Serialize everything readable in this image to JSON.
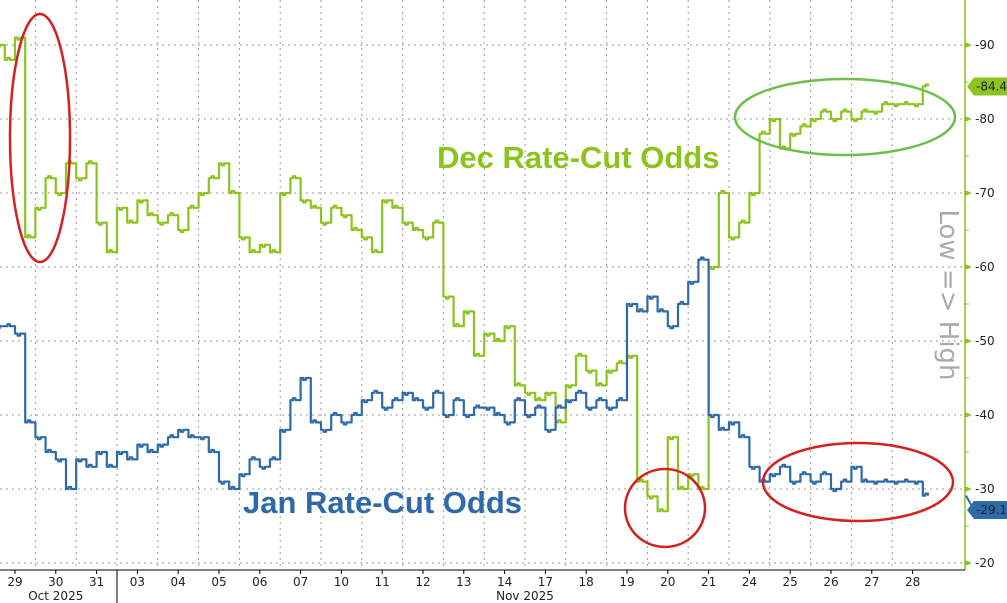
{
  "chart_data": {
    "type": "line",
    "categories": [
      "29",
      "30",
      "31",
      "03",
      "04",
      "05",
      "06",
      "07",
      "10",
      "11",
      "12",
      "13",
      "14",
      "17",
      "18",
      "19",
      "20",
      "21",
      "24",
      "25",
      "26",
      "27",
      "28"
    ],
    "month_labels": [
      "Oct 2025",
      "Nov 2025"
    ],
    "y_axis_title": "Low => High",
    "ylim": [
      20,
      92
    ],
    "yticks": [
      20,
      30,
      40,
      50,
      60,
      70,
      80,
      90
    ],
    "y_axis_side": "right",
    "grid": true,
    "samples_per_day_note_free": true,
    "series": [
      {
        "name": "Dec Rate-Cut Odds",
        "color": "#8cc41e",
        "last_value": "84.4",
        "values": [
          [
            90,
            88,
            91,
            64
          ],
          [
            68,
            72,
            70,
            74
          ],
          [
            72,
            74,
            66,
            62
          ],
          [
            68,
            66,
            69,
            67
          ],
          [
            66,
            67,
            65,
            68
          ],
          [
            70,
            72,
            74,
            70
          ],
          [
            64,
            62,
            63,
            62
          ],
          [
            70,
            72,
            69,
            68
          ],
          [
            66,
            68,
            67,
            65
          ],
          [
            64,
            62,
            69,
            68
          ],
          [
            66,
            65,
            64,
            66
          ],
          [
            56,
            52,
            54,
            48
          ],
          [
            51,
            50,
            52,
            44
          ],
          [
            43,
            42,
            43,
            39
          ],
          [
            44,
            48,
            46,
            44
          ],
          [
            46,
            47,
            48,
            31
          ],
          [
            29,
            27,
            37,
            30
          ],
          [
            32,
            30,
            60,
            70
          ],
          [
            64,
            66,
            70,
            78
          ],
          [
            80,
            76,
            78,
            79
          ],
          [
            80,
            81,
            80,
            81
          ],
          [
            80,
            81,
            81,
            82
          ],
          [
            82,
            82,
            82,
            84.4
          ]
        ]
      },
      {
        "name": "Jan Rate-Cut Odds",
        "color": "#2e6aa8",
        "last_value": "29.1",
        "values": [
          [
            52,
            52,
            51,
            39
          ],
          [
            37,
            35,
            34,
            30
          ],
          [
            34,
            33,
            35,
            33
          ],
          [
            35,
            34,
            36,
            35
          ],
          [
            36,
            37,
            38,
            37
          ],
          [
            37,
            35,
            31,
            30
          ],
          [
            32,
            34,
            33,
            34
          ],
          [
            38,
            42,
            45,
            39
          ],
          [
            38,
            40,
            39,
            40
          ],
          [
            42,
            43,
            41,
            42
          ],
          [
            43,
            42,
            41,
            43
          ],
          [
            40,
            42,
            40,
            41
          ],
          [
            41,
            40,
            39,
            42
          ],
          [
            40,
            41,
            38,
            41
          ],
          [
            42,
            43,
            41,
            42
          ],
          [
            41,
            42,
            55,
            54
          ],
          [
            56,
            54,
            52,
            55
          ],
          [
            58,
            61,
            40,
            38
          ],
          [
            39,
            37,
            33,
            31
          ],
          [
            32,
            33,
            31,
            32
          ],
          [
            31,
            32,
            30,
            31
          ],
          [
            33,
            31,
            31,
            31
          ],
          [
            31,
            31,
            31,
            29.1
          ]
        ]
      }
    ],
    "annotations": {
      "highlight_colors": {
        "red": "#d42020",
        "green": "#6cc04a"
      }
    }
  }
}
